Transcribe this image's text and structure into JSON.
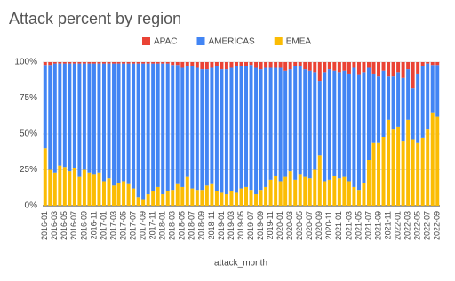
{
  "chart_data": {
    "type": "stacked_bar",
    "title": "Attack percent by region",
    "x_label": "attack_month",
    "categories": [
      "2016-01",
      null,
      "2016-03",
      null,
      "2016-05",
      null,
      "2016-07",
      null,
      "2016-09",
      null,
      "2016-11",
      null,
      "2017-01",
      null,
      "2017-03",
      null,
      "2017-05",
      null,
      "2017-07",
      null,
      "2017-09",
      null,
      "2017-11",
      null,
      "2018-01",
      null,
      "2018-03",
      null,
      "2018-05",
      null,
      "2018-07",
      null,
      "2018-09",
      null,
      "2018-11",
      null,
      "2019-01",
      null,
      "2019-03",
      null,
      "2019-05",
      null,
      "2019-07",
      null,
      "2019-09",
      null,
      "2019-11",
      null,
      "2020-01",
      null,
      "2020-03",
      null,
      "2020-05",
      null,
      "2020-07",
      null,
      "2020-09",
      null,
      "2020-11",
      null,
      "2021-01",
      null,
      "2021-03",
      null,
      "2021-05",
      null,
      "2021-07",
      null,
      "2021-09",
      null,
      "2021-11",
      null,
      "2022-01",
      null,
      "2022-03",
      null,
      "2022-05",
      null,
      "2022-07",
      null,
      "2022-09"
    ],
    "series": [
      {
        "name": "APAC",
        "color": "#ea4335",
        "values": [
          2,
          2,
          1,
          1,
          1,
          1,
          1,
          1,
          1,
          1,
          1,
          1,
          1,
          1,
          1,
          1,
          1,
          1,
          1,
          1,
          1,
          1,
          1,
          1,
          1,
          1,
          2,
          2,
          4,
          3,
          3,
          4,
          5,
          5,
          4,
          3,
          5,
          5,
          4,
          3,
          3,
          3,
          2,
          4,
          5,
          4,
          4,
          4,
          4,
          6,
          5,
          3,
          3,
          5,
          6,
          7,
          13,
          7,
          5,
          6,
          7,
          6,
          8,
          4,
          9,
          7,
          4,
          8,
          10,
          6,
          10,
          10,
          7,
          11,
          5,
          18,
          8,
          3,
          1,
          2,
          2
        ]
      },
      {
        "name": "AMERICAS",
        "color": "#4285f4",
        "values": [
          58,
          73,
          76,
          71,
          72,
          75,
          73,
          79,
          74,
          76,
          77,
          76,
          82,
          80,
          85,
          83,
          82,
          84,
          87,
          93,
          95,
          91,
          89,
          86,
          91,
          89,
          87,
          83,
          83,
          77,
          85,
          85,
          84,
          81,
          81,
          87,
          86,
          87,
          86,
          88,
          85,
          84,
          87,
          88,
          84,
          83,
          78,
          75,
          79,
          74,
          71,
          79,
          75,
          75,
          75,
          68,
          52,
          76,
          77,
          73,
          74,
          74,
          75,
          83,
          80,
          77,
          64,
          48,
          46,
          46,
          30,
          37,
          38,
          44,
          35,
          36,
          48,
          50,
          46,
          33,
          36
        ]
      },
      {
        "name": "EMEA",
        "color": "#fbbc04",
        "values": [
          40,
          25,
          23,
          28,
          27,
          24,
          26,
          20,
          25,
          23,
          22,
          23,
          17,
          19,
          14,
          16,
          17,
          15,
          12,
          6,
          4,
          8,
          10,
          13,
          8,
          10,
          11,
          15,
          13,
          20,
          12,
          11,
          11,
          14,
          15,
          10,
          9,
          8,
          10,
          9,
          12,
          13,
          11,
          8,
          11,
          13,
          18,
          21,
          17,
          20,
          24,
          18,
          22,
          20,
          19,
          25,
          35,
          17,
          18,
          21,
          19,
          20,
          17,
          13,
          11,
          16,
          32,
          44,
          44,
          48,
          60,
          53,
          55,
          45,
          60,
          46,
          44,
          47,
          53,
          65,
          62
        ]
      }
    ],
    "ylim": [
      0,
      100
    ],
    "yticks": [
      {
        "value": 0,
        "label": "0%"
      },
      {
        "value": 25,
        "label": "25%"
      },
      {
        "value": 50,
        "label": "50%"
      },
      {
        "value": 75,
        "label": "75%"
      },
      {
        "value": 100,
        "label": "100%"
      }
    ],
    "grid": true,
    "legend": "top"
  }
}
